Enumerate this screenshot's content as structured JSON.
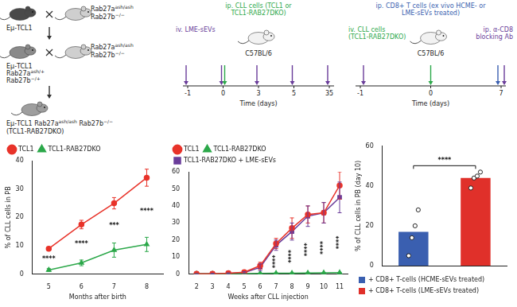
{
  "figure_schematics": {
    "breeding": {
      "cross_1": [
        [
          [
            {
              "t": "Eμ-TCL1"
            }
          ]
        ],
        [
          [
            {
              "t": "Rab27a",
              "sup": "ash/ash"
            }
          ],
          [
            {
              "t": "Rab27b",
              "sup": "−/−"
            }
          ]
        ]
      ],
      "cross_2": [
        [
          [
            {
              "t": "Eμ-TCL1"
            }
          ],
          [
            {
              "t": "Rab27a",
              "sup": "ash/+"
            }
          ],
          [
            {
              "t": "Rab27b",
              "sup": "−/+"
            }
          ]
        ],
        [
          [
            {
              "t": "Rab27a",
              "sup": "ash/ash"
            }
          ],
          [
            {
              "t": "Rab27b",
              "sup": "−/−"
            }
          ]
        ]
      ],
      "offspring": [
        [
          {
            "t": "Eμ-TCL1"
          },
          {
            "t": "Rab27a",
            "sup": "ash/ash"
          },
          {
            "t": "Rab27b",
            "sup": "−/−"
          }
        ],
        [
          {
            "t": "(TCL1-RAB27DKO)"
          }
        ]
      ]
    },
    "timelines": [
      {
        "strain": "C57BL/6",
        "injections": [
          {
            "text": "iv. LME-sEVs",
            "color": "#6a3d9a",
            "days": [
              -1,
              0,
              3,
              5,
              35
            ]
          },
          {
            "text": "ip. CLL cells (TCL1 or TCL1-RAB27DKO)",
            "color": "#2ca84a",
            "days": [
              0
            ]
          }
        ],
        "time_ticks": [
          -1,
          0,
          3,
          5,
          35
        ],
        "time_label": "Time (days)"
      },
      {
        "strain": "C57BL/6",
        "injections": [
          {
            "text": "ip. CD8+ T cells (ex vivo HCME- or LME-sEVs treated)",
            "color": "#3a5fb0",
            "days": [
              7
            ]
          },
          {
            "text": "iv. CLL cells (TCL1-RAB27DKO)",
            "color": "#2ca84a",
            "days": [
              0
            ]
          },
          {
            "text": "ip. α-CD8 blocking Ab",
            "color": "#6a3d9a",
            "days": [
              -1,
              7
            ]
          }
        ],
        "time_ticks": [
          -1,
          0,
          7
        ],
        "time_label": "Time (days)"
      }
    ]
  },
  "chart_data": [
    {
      "type": "line",
      "categories": [
        "5",
        "6",
        "7",
        "8"
      ],
      "xlabel": "Months after birth",
      "ylabel": "% of CLL cells in PB",
      "ylim": [
        0,
        40
      ],
      "yticks": [
        0,
        10,
        20,
        30,
        40
      ],
      "grid": false,
      "legend": "top",
      "series": [
        {
          "name": "TCL1",
          "color": "#e8332a",
          "marker": "circle",
          "values": [
            9,
            17.5,
            25,
            34
          ],
          "error": [
            0.6,
            1.5,
            2,
            3
          ]
        },
        {
          "name": "TCL1-RAB27DKO",
          "color": "#2ca84a",
          "marker": "triangle",
          "values": [
            1.5,
            4,
            8.5,
            10.5
          ],
          "error": [
            0.5,
            1,
            2.5,
            2.5
          ]
        }
      ],
      "annotations": [
        {
          "x": "5",
          "text": "****"
        },
        {
          "x": "6",
          "text": "****"
        },
        {
          "x": "7",
          "text": "***"
        },
        {
          "x": "8",
          "text": "****"
        }
      ]
    },
    {
      "type": "line",
      "categories": [
        "2",
        "3",
        "4",
        "5",
        "6",
        "7",
        "8",
        "9",
        "10",
        "11"
      ],
      "xlabel": "Weeks after CLL injection",
      "ylim": [
        0,
        60
      ],
      "yticks": [
        0,
        10,
        20,
        30,
        40,
        50,
        60
      ],
      "grid": false,
      "legend": "top",
      "series": [
        {
          "name": "TCL1",
          "color": "#e8332a",
          "marker": "circle",
          "values": [
            0.2,
            0.3,
            0.6,
            1.2,
            5,
            18,
            27,
            35,
            36,
            52
          ],
          "error": [
            0.1,
            0.2,
            0.3,
            0.6,
            2,
            3,
            6,
            5,
            6,
            8
          ]
        },
        {
          "name": "TCL1-RAB27DKO",
          "color": "#2ca84a",
          "marker": "triangle",
          "values": [
            0.2,
            0.2,
            0.3,
            0.4,
            0.5,
            0.6,
            0.6,
            0.7,
            0.8,
            0.9
          ],
          "error": [
            0.1,
            0.1,
            0.1,
            0.2,
            0.2,
            0.2,
            0.2,
            0.2,
            0.2,
            0.2
          ]
        },
        {
          "name": "TCL1-RAB27DKO + LME-sEVs",
          "color": "#6a3d9a",
          "marker": "square",
          "values": [
            0.2,
            0.3,
            0.5,
            1,
            4,
            17,
            25,
            34,
            36,
            45
          ],
          "error": [
            0.1,
            0.2,
            0.3,
            0.5,
            2,
            3,
            5,
            6,
            6,
            9
          ]
        }
      ],
      "annotations": [
        {
          "x": "7",
          "text": "****"
        },
        {
          "x": "8",
          "text": "****"
        },
        {
          "x": "9",
          "text": "****"
        },
        {
          "x": "10",
          "text": "****"
        },
        {
          "x": "11",
          "text": "****"
        }
      ]
    },
    {
      "type": "bar",
      "categories": [
        null,
        null
      ],
      "ylabel": "% of CLL cells in PB (day 10)",
      "ylim": [
        0,
        60
      ],
      "yticks": [
        0,
        20,
        40,
        60
      ],
      "grid": false,
      "legend": "bottom",
      "tick_labels": "y",
      "series": [
        {
          "name": "+ CD8+ T-cells (HCME-sEVs treated)",
          "color": "#3a5fb0",
          "values": [
            17,
            null
          ],
          "points": [
            5,
            14,
            20,
            28
          ]
        },
        {
          "name": "+ CD8+ T-cells (LME-sEVs treated)",
          "color": "#e0302a",
          "values": [
            null,
            44
          ],
          "points": [
            39,
            44,
            45,
            47
          ]
        }
      ],
      "annotations": [
        {
          "text": "****"
        }
      ]
    }
  ]
}
